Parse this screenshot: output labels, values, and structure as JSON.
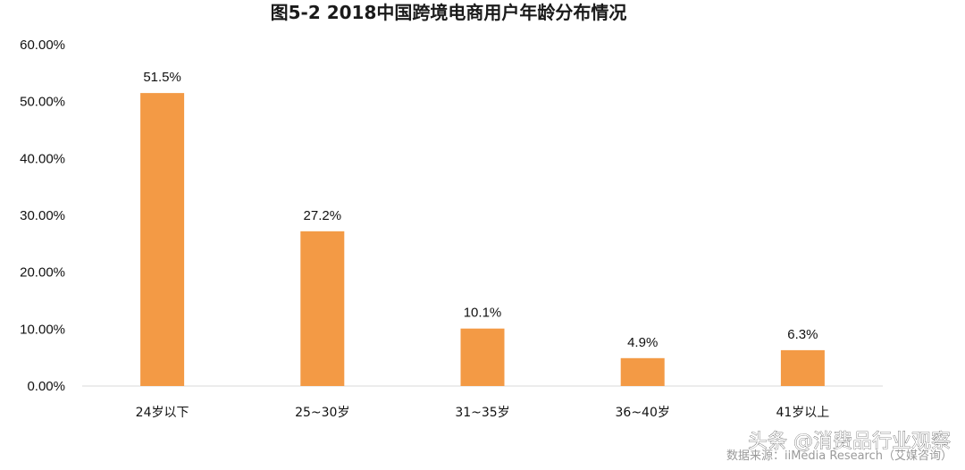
{
  "chart_data": {
    "type": "bar",
    "title": "图5-2 2018中国跨境电商用户年龄分布情况",
    "categories": [
      "24岁以下",
      "25~30岁",
      "31~35岁",
      "36~40岁",
      "41岁以上"
    ],
    "values": [
      51.5,
      27.2,
      10.1,
      4.9,
      6.3
    ],
    "data_labels": [
      "51.5%",
      "27.2%",
      "10.1%",
      "4.9%",
      "6.3%"
    ],
    "y_ticks": [
      "0.00%",
      "10.00%",
      "20.00%",
      "30.00%",
      "40.00%",
      "50.00%",
      "60.00%"
    ],
    "ylim": [
      0,
      60
    ],
    "xlabel": "",
    "ylabel": "",
    "grid": false,
    "bar_color": "#f39a45",
    "source": "数据来源：iiMedia Research（艾媒咨询）"
  },
  "watermark": "头条 @消费品行业观察"
}
